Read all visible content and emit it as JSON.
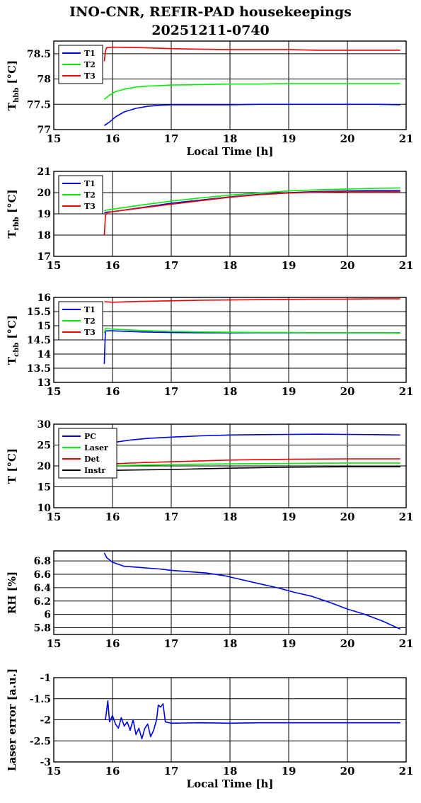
{
  "title_line1": "INO-CNR, REFIR-PAD housekeepings",
  "title_line2": "20251211-0740",
  "colors": {
    "blue": "#0000ee",
    "green": "#00ee00",
    "red": "#ee0000",
    "black": "#000000"
  },
  "chart_data": [
    {
      "type": "line",
      "ylabel": "T_hbb [°C]",
      "xlabel": "Local Time [h]",
      "xlim": [
        15,
        21
      ],
      "ylim": [
        77,
        78.75
      ],
      "xticks": [
        "15",
        "16",
        "17",
        "18",
        "19",
        "20",
        "21"
      ],
      "yticks": [
        "77",
        "77.5",
        "78",
        "78.5"
      ],
      "legend": "top-left",
      "grid": true,
      "series": [
        {
          "name": "T1",
          "color": "#0000ee",
          "x": [
            15.86,
            15.95,
            16.05,
            16.2,
            16.4,
            16.6,
            16.8,
            17.0,
            17.5,
            18.0,
            18.5,
            19.0,
            19.5,
            20.0,
            20.5,
            20.9
          ],
          "y": [
            77.08,
            77.15,
            77.25,
            77.35,
            77.42,
            77.46,
            77.48,
            77.49,
            77.49,
            77.49,
            77.5,
            77.5,
            77.5,
            77.5,
            77.5,
            77.49
          ]
        },
        {
          "name": "T2",
          "color": "#00ee00",
          "x": [
            15.86,
            15.95,
            16.05,
            16.2,
            16.4,
            16.6,
            16.8,
            17.0,
            17.5,
            18.0,
            18.5,
            19.0,
            19.5,
            20.0,
            20.5,
            20.9
          ],
          "y": [
            77.6,
            77.68,
            77.75,
            77.8,
            77.84,
            77.86,
            77.87,
            77.88,
            77.89,
            77.9,
            77.9,
            77.91,
            77.91,
            77.91,
            77.91,
            77.91
          ]
        },
        {
          "name": "T3",
          "color": "#ee0000",
          "x": [
            15.86,
            15.88,
            15.9,
            16.0,
            16.5,
            17.0,
            17.5,
            18.0,
            18.5,
            19.0,
            19.5,
            20.0,
            20.5,
            20.9
          ],
          "y": [
            78.35,
            78.55,
            78.62,
            78.63,
            78.62,
            78.6,
            78.59,
            78.58,
            78.58,
            78.58,
            78.57,
            78.57,
            78.57,
            78.57
          ]
        }
      ]
    },
    {
      "type": "line",
      "ylabel": "T_rbb [°C]",
      "xlabel": "",
      "xlim": [
        15,
        21
      ],
      "ylim": [
        17,
        21
      ],
      "xticks": [
        "15",
        "16",
        "17",
        "18",
        "19",
        "20",
        "21"
      ],
      "yticks": [
        "17",
        "18",
        "19",
        "20",
        "21"
      ],
      "legend": "top-left",
      "grid": true,
      "series": [
        {
          "name": "T1",
          "color": "#0000ee",
          "x": [
            15.86,
            15.9,
            16.0,
            16.5,
            17.0,
            17.5,
            18.0,
            18.5,
            19.0,
            19.5,
            20.0,
            20.5,
            20.9
          ],
          "y": [
            19.05,
            19.08,
            19.1,
            19.3,
            19.5,
            19.65,
            19.8,
            19.92,
            20.0,
            20.05,
            20.08,
            20.1,
            20.1
          ]
        },
        {
          "name": "T2",
          "color": "#00ee00",
          "x": [
            15.86,
            15.9,
            16.0,
            16.5,
            17.0,
            17.5,
            18.0,
            18.5,
            19.0,
            19.5,
            20.0,
            20.5,
            20.9
          ],
          "y": [
            19.15,
            19.18,
            19.22,
            19.42,
            19.6,
            19.75,
            19.88,
            19.98,
            20.08,
            20.13,
            20.17,
            20.2,
            20.22
          ]
        },
        {
          "name": "T3",
          "color": "#ee0000",
          "x": [
            15.86,
            15.88,
            15.9,
            16.0,
            16.5,
            17.0,
            17.5,
            18.0,
            18.5,
            19.0,
            19.5,
            20.0,
            20.5,
            20.9
          ],
          "y": [
            18.0,
            18.9,
            19.05,
            19.1,
            19.28,
            19.45,
            19.62,
            19.78,
            19.9,
            19.98,
            20.02,
            20.05,
            20.05,
            20.05
          ]
        }
      ]
    },
    {
      "type": "line",
      "ylabel": "T_cbb [°C]",
      "xlabel": "",
      "xlim": [
        15,
        21
      ],
      "ylim": [
        13,
        16
      ],
      "xticks": [
        "15",
        "16",
        "17",
        "18",
        "19",
        "20",
        "21"
      ],
      "yticks": [
        "13",
        "13.5",
        "14",
        "14.5",
        "15",
        "15.5",
        "16"
      ],
      "legend": "top-left",
      "grid": true,
      "series": [
        {
          "name": "T1",
          "color": "#0000ee",
          "x": [
            15.86,
            15.87,
            15.88,
            15.9,
            16.0,
            16.5,
            17.0,
            17.5,
            18.0,
            18.5,
            19.0,
            19.5,
            20.0,
            20.5,
            20.9
          ],
          "y": [
            13.65,
            14.3,
            14.8,
            14.82,
            14.82,
            14.78,
            14.76,
            14.75,
            14.75,
            14.75,
            14.75,
            14.75,
            14.75,
            14.75,
            14.75
          ]
        },
        {
          "name": "T2",
          "color": "#00ee00",
          "x": [
            15.86,
            15.87,
            15.88,
            15.9,
            16.0,
            16.5,
            17.0,
            17.5,
            18.0,
            18.5,
            19.0,
            19.5,
            20.0,
            20.5,
            20.9
          ],
          "y": [
            14.75,
            14.8,
            14.9,
            14.9,
            14.88,
            14.83,
            14.8,
            14.78,
            14.77,
            14.76,
            14.76,
            14.75,
            14.75,
            14.75,
            14.74
          ]
        },
        {
          "name": "T3",
          "color": "#ee0000",
          "x": [
            15.86,
            16.0,
            16.5,
            17.0,
            17.5,
            18.0,
            18.5,
            19.0,
            19.5,
            20.0,
            20.5,
            20.9
          ],
          "y": [
            15.85,
            15.83,
            15.86,
            15.88,
            15.9,
            15.91,
            15.92,
            15.93,
            15.94,
            15.94,
            15.95,
            15.95
          ]
        }
      ]
    },
    {
      "type": "line",
      "ylabel": "T [°C]",
      "xlabel": "",
      "xlim": [
        15,
        21
      ],
      "ylim": [
        10,
        30
      ],
      "xticks": [
        "15",
        "16",
        "17",
        "18",
        "19",
        "20",
        "21"
      ],
      "yticks": [
        "10",
        "15",
        "20",
        "25",
        "30"
      ],
      "legend": "top-left",
      "grid": true,
      "series": [
        {
          "name": "PC",
          "color": "#0000ee",
          "x": [
            15.86,
            16.0,
            16.3,
            16.6,
            17.0,
            17.5,
            18.0,
            18.5,
            19.0,
            19.5,
            20.0,
            20.5,
            20.9
          ],
          "y": [
            24.6,
            25.6,
            26.2,
            26.6,
            26.9,
            27.2,
            27.4,
            27.5,
            27.55,
            27.6,
            27.55,
            27.5,
            27.4
          ]
        },
        {
          "name": "Laser",
          "color": "#00ee00",
          "x": [
            15.86,
            16.0,
            16.5,
            17.0,
            17.5,
            18.0,
            18.5,
            19.0,
            19.5,
            20.0,
            20.5,
            20.9
          ],
          "y": [
            20.0,
            20.1,
            20.2,
            20.3,
            20.4,
            20.5,
            20.55,
            20.6,
            20.65,
            20.7,
            20.7,
            20.7
          ]
        },
        {
          "name": "Det",
          "color": "#ee0000",
          "x": [
            15.86,
            16.0,
            16.5,
            17.0,
            17.5,
            18.0,
            18.5,
            19.0,
            19.5,
            20.0,
            20.5,
            20.9
          ],
          "y": [
            20.4,
            20.5,
            20.8,
            21.0,
            21.2,
            21.4,
            21.5,
            21.6,
            21.65,
            21.7,
            21.7,
            21.7
          ]
        },
        {
          "name": "Instr",
          "color": "#000000",
          "x": [
            15.86,
            16.0,
            16.5,
            17.0,
            17.5,
            18.0,
            18.5,
            19.0,
            19.5,
            20.0,
            20.5,
            20.9
          ],
          "y": [
            18.9,
            18.95,
            19.05,
            19.15,
            19.3,
            19.45,
            19.6,
            19.7,
            19.75,
            19.8,
            19.8,
            19.8
          ]
        }
      ]
    },
    {
      "type": "line",
      "ylabel": "RH [%]",
      "xlabel": "",
      "xlim": [
        15,
        21
      ],
      "ylim": [
        5.7,
        6.95
      ],
      "xticks": [
        "15",
        "16",
        "17",
        "18",
        "19",
        "20",
        "21"
      ],
      "yticks": [
        "5.8",
        "6",
        "6.2",
        "6.4",
        "6.6",
        "6.8"
      ],
      "legend": "none",
      "grid": true,
      "series": [
        {
          "name": "",
          "color": "#0000ee",
          "x": [
            15.86,
            15.9,
            16.0,
            16.2,
            16.5,
            16.8,
            17.0,
            17.3,
            17.6,
            17.9,
            18.2,
            18.5,
            18.8,
            19.1,
            19.4,
            19.7,
            20.0,
            20.3,
            20.6,
            20.8,
            20.9
          ],
          "y": [
            6.92,
            6.85,
            6.78,
            6.72,
            6.7,
            6.68,
            6.66,
            6.64,
            6.62,
            6.58,
            6.52,
            6.46,
            6.4,
            6.33,
            6.27,
            6.18,
            6.08,
            6.0,
            5.9,
            5.82,
            5.78
          ]
        }
      ]
    },
    {
      "type": "line",
      "ylabel": "Laser error [a.u.]",
      "xlabel": "Local Time [h]",
      "xlim": [
        15,
        21
      ],
      "ylim": [
        -3,
        -1
      ],
      "xticks": [
        "15",
        "16",
        "17",
        "18",
        "19",
        "20",
        "21"
      ],
      "yticks": [
        "-3",
        "-2.5",
        "-2",
        "-1.5",
        "-1"
      ],
      "legend": "none",
      "grid": true,
      "series": [
        {
          "name": "",
          "color": "#0000ee",
          "x": [
            15.88,
            15.92,
            15.95,
            16.0,
            16.05,
            16.1,
            16.15,
            16.2,
            16.25,
            16.3,
            16.35,
            16.4,
            16.45,
            16.5,
            16.55,
            16.6,
            16.65,
            16.7,
            16.75,
            16.78,
            16.82,
            16.86,
            16.9,
            17.0,
            17.5,
            18.0,
            18.5,
            19.0,
            19.5,
            20.0,
            20.5,
            20.9
          ],
          "y": [
            -2.0,
            -1.55,
            -2.05,
            -1.9,
            -2.1,
            -2.2,
            -1.95,
            -2.15,
            -2.05,
            -2.25,
            -2.0,
            -2.35,
            -2.2,
            -2.45,
            -2.2,
            -2.1,
            -2.4,
            -2.25,
            -2.0,
            -1.65,
            -1.7,
            -1.62,
            -2.05,
            -2.08,
            -2.07,
            -2.08,
            -2.07,
            -2.07,
            -2.07,
            -2.07,
            -2.07,
            -2.07
          ]
        }
      ]
    }
  ]
}
